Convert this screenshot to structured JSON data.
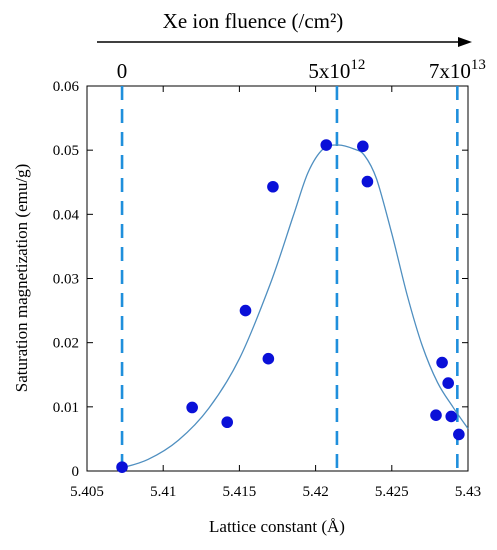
{
  "chart_data": {
    "type": "scatter",
    "title": "",
    "top_axis_label": "Xe ion fluence (/cm²)",
    "xlabel": "Lattice constant (Å)",
    "ylabel": "Saturation magnetization (emu/g)",
    "xlim": [
      5.405,
      5.43
    ],
    "ylim": [
      0,
      0.06
    ],
    "xticks": [
      "5.405",
      "5.41",
      "5.415",
      "5.42",
      "5.425",
      "5.43"
    ],
    "yticks": [
      "0",
      "0.01",
      "0.02",
      "0.03",
      "0.04",
      "0.05",
      "0.06"
    ],
    "grid": false,
    "colors": {
      "points": "#0a10d8",
      "curve": "#4f8fc0",
      "guides": "#1f8fdc"
    },
    "series": [
      {
        "values": [
          [
            5.4073,
            0.0006
          ],
          [
            5.4119,
            0.0099
          ],
          [
            5.4142,
            0.0076
          ],
          [
            5.4154,
            0.025
          ],
          [
            5.4169,
            0.0175
          ],
          [
            5.4172,
            0.0443
          ],
          [
            5.4207,
            0.0508
          ],
          [
            5.4231,
            0.0506
          ],
          [
            5.4234,
            0.0451
          ],
          [
            5.4279,
            0.0087
          ],
          [
            5.4283,
            0.0169
          ],
          [
            5.4287,
            0.0137
          ],
          [
            5.4289,
            0.0085
          ],
          [
            5.4294,
            0.0057
          ]
        ]
      }
    ],
    "fit_curve": [
      [
        5.4073,
        0.0005
      ],
      [
        5.409,
        0.0018
      ],
      [
        5.411,
        0.0048
      ],
      [
        5.413,
        0.0098
      ],
      [
        5.415,
        0.0175
      ],
      [
        5.417,
        0.029
      ],
      [
        5.4185,
        0.0395
      ],
      [
        5.4195,
        0.0465
      ],
      [
        5.4205,
        0.0502
      ],
      [
        5.4215,
        0.0508
      ],
      [
        5.4225,
        0.0502
      ],
      [
        5.4232,
        0.0492
      ],
      [
        5.424,
        0.0455
      ],
      [
        5.425,
        0.037
      ],
      [
        5.426,
        0.0275
      ],
      [
        5.427,
        0.0195
      ],
      [
        5.428,
        0.0138
      ],
      [
        5.429,
        0.01
      ],
      [
        5.43,
        0.0066
      ]
    ],
    "fluence_markers": [
      {
        "label": "0",
        "x": 5.4073,
        "exp": ""
      },
      {
        "label": "5x10",
        "x": 5.4214,
        "exp": "12"
      },
      {
        "label": "7x10",
        "x": 5.4293,
        "exp": "13"
      }
    ]
  }
}
